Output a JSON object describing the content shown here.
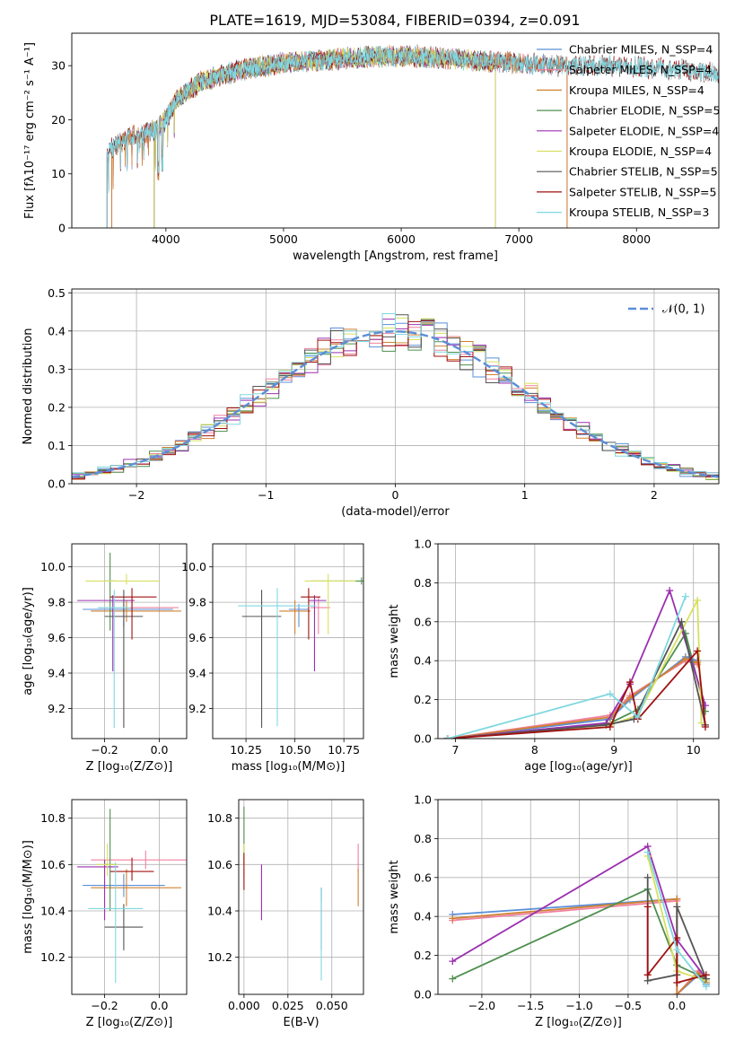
{
  "figure": {
    "suptitle": "PLATE=1619, MJD=53084, FIBERID=0394, z=0.091"
  },
  "colors": {
    "Chabrier MILES": "#5b8fd8",
    "Salpeter MILES": "#f080a0",
    "Kroupa MILES": "#d08030",
    "Chabrier ELODIE": "#4f8f4f",
    "Salpeter ELODIE": "#9b30b0",
    "Kroupa ELODIE": "#d8e060",
    "Chabrier STELIB": "#555555",
    "Salpeter STELIB": "#a01010",
    "Kroupa STELIB": "#80d8e0",
    "gaussian": "#5b8fd8",
    "grid": "#b0b0b0"
  },
  "chart_data": [
    {
      "id": "spectrum",
      "type": "line",
      "xlabel": "wavelength [Angstrom, rest frame]",
      "ylabel": "Flux [fλ10⁻¹⁷ erg cm⁻² s⁻¹ A⁻¹]",
      "xlim": [
        3200,
        8700
      ],
      "ylim": [
        0,
        36
      ],
      "xticks": [
        4000,
        5000,
        6000,
        7000,
        8000
      ],
      "yticks": [
        0,
        10,
        20,
        30
      ],
      "grid": false,
      "legend_position": "upper right",
      "continuum_shape": {
        "x": [
          3500,
          3700,
          3900,
          4000,
          4100,
          4300,
          4500,
          4700,
          5000,
          5300,
          5600,
          6000,
          6300,
          6600,
          7000,
          7400,
          7800,
          8200,
          8500,
          8700
        ],
        "y": [
          14,
          17,
          18,
          20,
          24,
          27,
          28.5,
          29.5,
          30.5,
          31,
          31.5,
          31.8,
          31.5,
          31,
          30.5,
          30,
          30,
          29.5,
          29,
          28.5
        ]
      },
      "series": [
        {
          "name": "Chabrier MILES",
          "label": "Chabrier MILES, N_SSP=4",
          "x_range": [
            3540,
            7410
          ]
        },
        {
          "name": "Salpeter MILES",
          "label": "Salpeter MILES, N_SSP=4",
          "x_range": [
            3540,
            7410
          ]
        },
        {
          "name": "Kroupa MILES",
          "label": "Kroupa MILES, N_SSP=4",
          "x_range": [
            3540,
            7410
          ]
        },
        {
          "name": "Chabrier ELODIE",
          "label": "Chabrier ELODIE, N_SSP=5",
          "x_range": [
            3900,
            6800
          ]
        },
        {
          "name": "Salpeter ELODIE",
          "label": "Salpeter ELODIE, N_SSP=4",
          "x_range": [
            3900,
            6800
          ]
        },
        {
          "name": "Kroupa ELODIE",
          "label": "Kroupa ELODIE, N_SSP=4",
          "x_range": [
            3900,
            6800
          ]
        },
        {
          "name": "Chabrier STELIB",
          "label": "Chabrier STELIB, N_SSP=5",
          "x_range": [
            3500,
            8700
          ]
        },
        {
          "name": "Salpeter STELIB",
          "label": "Salpeter STELIB, N_SSP=5",
          "x_range": [
            3500,
            8700
          ]
        },
        {
          "name": "Kroupa STELIB",
          "label": "Kroupa STELIB, N_SSP=3",
          "x_range": [
            3500,
            8700
          ]
        }
      ]
    },
    {
      "id": "residuals",
      "type": "line",
      "xlabel": "(data-model)/error",
      "ylabel": "Normed distribution",
      "xlim": [
        -2.5,
        2.5
      ],
      "ylim": [
        0,
        0.51
      ],
      "xticks": [
        -2,
        -1,
        0,
        1,
        2
      ],
      "yticks": [
        0.0,
        0.1,
        0.2,
        0.3,
        0.4,
        0.5
      ],
      "grid": true,
      "legend_position": "upper right",
      "gaussian": {
        "label": "𝒩(0, 1)",
        "mean": 0,
        "sigma": 1
      },
      "histogram_bin_width": 0.1,
      "series_names": [
        "Chabrier MILES",
        "Salpeter MILES",
        "Kroupa MILES",
        "Chabrier ELODIE",
        "Salpeter ELODIE",
        "Kroupa ELODIE",
        "Chabrier STELIB",
        "Salpeter STELIB",
        "Kroupa STELIB"
      ]
    },
    {
      "id": "age_vs_Z",
      "type": "scatter",
      "xlabel": "Z [log₁₀(Z/Z⊙)]",
      "ylabel": "age  [log₁₀(age/yr)]",
      "xlim": [
        -0.32,
        0.1
      ],
      "ylim": [
        9.03,
        10.13
      ],
      "xticks": [
        -0.2,
        0.0
      ],
      "yticks": [
        9.2,
        9.4,
        9.6,
        9.8,
        10.0
      ],
      "grid": true,
      "points": [
        {
          "series": "Chabrier MILES",
          "x": -0.13,
          "xerr": [
            0.15,
            0.18
          ],
          "y": 9.76,
          "yerr": [
            0.1,
            0.03
          ]
        },
        {
          "series": "Salpeter MILES",
          "x": -0.1,
          "xerr": [
            0.12,
            0.17
          ],
          "y": 9.77,
          "yerr": [
            0.05,
            0.06
          ]
        },
        {
          "series": "Kroupa MILES",
          "x": -0.12,
          "xerr": [
            0.13,
            0.2
          ],
          "y": 9.75,
          "yerr": [
            0.06,
            0.06
          ]
        },
        {
          "series": "Chabrier ELODIE",
          "x": -0.18,
          "xerr": [
            0.02,
            0.02
          ],
          "y": 9.92,
          "yerr": [
            0.28,
            0.16
          ]
        },
        {
          "series": "Salpeter ELODIE",
          "x": -0.17,
          "xerr": [
            0.13,
            0.08
          ],
          "y": 9.81,
          "yerr": [
            0.4,
            0.03
          ]
        },
        {
          "series": "Kroupa ELODIE",
          "x": -0.12,
          "xerr": [
            0.15,
            0.12
          ],
          "y": 9.92,
          "yerr": [
            0.02,
            0.04
          ]
        },
        {
          "series": "Chabrier STELIB",
          "x": -0.13,
          "xerr": [
            0.07,
            0.07
          ],
          "y": 9.72,
          "yerr": [
            0.63,
            0.15
          ]
        },
        {
          "series": "Salpeter STELIB",
          "x": -0.1,
          "xerr": [
            0.08,
            0.09
          ],
          "y": 9.83,
          "yerr": [
            0.24,
            0.05
          ]
        },
        {
          "series": "Kroupa STELIB",
          "x": -0.165,
          "xerr": [
            0.06,
            0.06
          ],
          "y": 9.77,
          "yerr": [
            0.68,
            0.1
          ]
        }
      ]
    },
    {
      "id": "age_vs_mass",
      "type": "scatter",
      "xlabel": "mass [log₁₀(M/M⊙)]",
      "ylabel": "",
      "xlim": [
        10.08,
        10.85
      ],
      "ylim": [
        9.03,
        10.13
      ],
      "xticks": [
        10.25,
        10.5,
        10.75
      ],
      "yticks": [
        9.2,
        9.4,
        9.6,
        9.8,
        10.0
      ],
      "grid": true,
      "points": [
        {
          "series": "Chabrier MILES",
          "x": 10.52,
          "xerr": [
            0.05,
            0.05
          ],
          "y": 9.76,
          "yerr": [
            0.1,
            0.03
          ]
        },
        {
          "series": "Salpeter MILES",
          "x": 10.62,
          "xerr": [
            0.04,
            0.06
          ],
          "y": 9.77,
          "yerr": [
            0.15,
            0.06
          ]
        },
        {
          "series": "Kroupa MILES",
          "x": 10.5,
          "xerr": [
            0.08,
            0.08
          ],
          "y": 9.75,
          "yerr": [
            0.13,
            0.06
          ]
        },
        {
          "series": "Chabrier ELODIE",
          "x": 10.84,
          "xerr": [
            0.26,
            0.08
          ],
          "y": 9.92,
          "yerr": [
            0.02,
            0.02
          ]
        },
        {
          "series": "Salpeter ELODIE",
          "x": 10.6,
          "xerr": [
            0.03,
            0.06
          ],
          "y": 9.81,
          "yerr": [
            0.4,
            0.03
          ]
        },
        {
          "series": "Kroupa ELODIE",
          "x": 10.67,
          "xerr": [
            0.12,
            0.14
          ],
          "y": 9.92,
          "yerr": [
            0.3,
            0.04
          ]
        },
        {
          "series": "Chabrier STELIB",
          "x": 10.33,
          "xerr": [
            0.1,
            0.1
          ],
          "y": 9.72,
          "yerr": [
            0.63,
            0.15
          ]
        },
        {
          "series": "Salpeter STELIB",
          "x": 10.57,
          "xerr": [
            0.04,
            0.06
          ],
          "y": 9.83,
          "yerr": [
            0.24,
            0.05
          ]
        },
        {
          "series": "Kroupa STELIB",
          "x": 10.41,
          "xerr": [
            0.2,
            0.2
          ],
          "y": 9.78,
          "yerr": [
            0.68,
            0.1
          ]
        }
      ]
    },
    {
      "id": "massweight_vs_age",
      "type": "line",
      "xlabel": "age  [log₁₀(age/yr)]",
      "ylabel": "mass weight",
      "xlim": [
        6.78,
        10.32
      ],
      "ylim": [
        0,
        1.0
      ],
      "xticks": [
        7,
        8,
        9,
        10
      ],
      "yticks": [
        0.0,
        0.2,
        0.4,
        0.6,
        0.8,
        1.0
      ],
      "grid": true,
      "series": [
        {
          "name": "Chabrier MILES",
          "x": [
            6.9,
            8.95,
            9.2,
            9.9,
            10.05
          ],
          "y": [
            0.0,
            0.1,
            0.2,
            0.42,
            0.4
          ]
        },
        {
          "name": "Salpeter MILES",
          "x": [
            6.9,
            8.95,
            9.2,
            9.9,
            10.05
          ],
          "y": [
            0.0,
            0.12,
            0.22,
            0.4,
            0.38
          ]
        },
        {
          "name": "Kroupa MILES",
          "x": [
            6.9,
            8.95,
            9.2,
            9.9,
            10.05
          ],
          "y": [
            0.0,
            0.11,
            0.21,
            0.41,
            0.39
          ]
        },
        {
          "name": "Chabrier ELODIE",
          "x": [
            6.9,
            8.95,
            9.3,
            9.9,
            10.15
          ],
          "y": [
            0.0,
            0.08,
            0.15,
            0.54,
            0.14
          ]
        },
        {
          "name": "Salpeter ELODIE",
          "x": [
            6.9,
            8.9,
            9.2,
            9.7,
            10.15
          ],
          "y": [
            0.0,
            0.08,
            0.28,
            0.76,
            0.17
          ]
        },
        {
          "name": "Kroupa ELODIE",
          "x": [
            6.9,
            8.95,
            9.3,
            10.05,
            10.1
          ],
          "y": [
            0.0,
            0.07,
            0.12,
            0.71,
            0.08
          ]
        },
        {
          "name": "Chabrier STELIB",
          "x": [
            6.9,
            8.9,
            9.25,
            9.85,
            10.15
          ],
          "y": [
            0.0,
            0.07,
            0.1,
            0.6,
            0.07
          ]
        },
        {
          "name": "Salpeter STELIB",
          "x": [
            6.9,
            8.95,
            9.2,
            9.3,
            10.05,
            10.15
          ],
          "y": [
            0.0,
            0.06,
            0.29,
            0.1,
            0.45,
            0.06
          ]
        },
        {
          "name": "Kroupa STELIB",
          "x": [
            6.9,
            8.95,
            9.3,
            9.9
          ],
          "y": [
            0.0,
            0.23,
            0.11,
            0.73
          ]
        }
      ]
    },
    {
      "id": "mass_vs_Z",
      "type": "scatter",
      "xlabel": "Z [log₁₀(Z/Z⊙)]",
      "ylabel": "mass [log₁₀(M/M⊙)]",
      "xlim": [
        -0.32,
        0.1
      ],
      "ylim": [
        10.04,
        10.88
      ],
      "xticks": [
        -0.2,
        0.0
      ],
      "yticks": [
        10.2,
        10.4,
        10.6,
        10.8
      ],
      "grid": true,
      "points": [
        {
          "series": "Chabrier MILES",
          "x": -0.13,
          "xerr": [
            0.15,
            0.15
          ],
          "y": 10.51,
          "yerr": [
            0.05,
            0.05
          ]
        },
        {
          "series": "Salpeter MILES",
          "x": -0.05,
          "xerr": [
            0.2,
            0.16
          ],
          "y": 10.62,
          "yerr": [
            0.04,
            0.04
          ]
        },
        {
          "series": "Kroupa MILES",
          "x": -0.12,
          "xerr": [
            0.13,
            0.2
          ],
          "y": 10.5,
          "yerr": [
            0.08,
            0.08
          ]
        },
        {
          "series": "Chabrier ELODIE",
          "x": -0.18,
          "xerr": [
            0.02,
            0.02
          ],
          "y": 10.6,
          "yerr": [
            0.2,
            0.24
          ]
        },
        {
          "series": "Salpeter ELODIE",
          "x": -0.2,
          "xerr": [
            0.1,
            0.05
          ],
          "y": 10.59,
          "yerr": [
            0.23,
            0.03
          ]
        },
        {
          "series": "Kroupa ELODIE",
          "x": -0.19,
          "xerr": [
            0.04,
            0.04
          ],
          "y": 10.6,
          "yerr": [
            0.05,
            0.09
          ]
        },
        {
          "series": "Chabrier STELIB",
          "x": -0.13,
          "xerr": [
            0.07,
            0.07
          ],
          "y": 10.33,
          "yerr": [
            0.1,
            0.1
          ]
        },
        {
          "series": "Salpeter STELIB",
          "x": -0.1,
          "xerr": [
            0.08,
            0.08
          ],
          "y": 10.57,
          "yerr": [
            0.04,
            0.06
          ]
        },
        {
          "series": "Kroupa STELIB",
          "x": -0.16,
          "xerr": [
            0.1,
            0.1
          ],
          "y": 10.41,
          "yerr": [
            0.32,
            0.2
          ]
        }
      ]
    },
    {
      "id": "mass_vs_EBV",
      "type": "scatter",
      "xlabel": "E(B-V)",
      "ylabel": "",
      "xlim": [
        -0.003,
        0.068
      ],
      "ylim": [
        10.04,
        10.88
      ],
      "xticks": [
        0.0,
        0.025,
        0.05
      ],
      "yticks": [
        10.2,
        10.4,
        10.6,
        10.8
      ],
      "grid": true,
      "points": [
        {
          "series": "Chabrier MILES",
          "x": 0.044,
          "y": 10.47,
          "yerr": [
            0.03,
            0.03
          ]
        },
        {
          "series": "Salpeter MILES",
          "x": 0.065,
          "y": 10.62,
          "yerr": [
            0.05,
            0.07
          ]
        },
        {
          "series": "Kroupa MILES",
          "x": 0.065,
          "y": 10.5,
          "yerr": [
            0.08,
            0.08
          ]
        },
        {
          "series": "Chabrier ELODIE",
          "x": 0.0,
          "y": 10.7,
          "yerr": [
            0.1,
            0.15
          ]
        },
        {
          "series": "Salpeter ELODIE",
          "x": 0.01,
          "y": 10.5,
          "yerr": [
            0.14,
            0.1
          ]
        },
        {
          "series": "Kroupa ELODIE",
          "x": 0.0,
          "y": 10.6,
          "yerr": [
            0.05,
            0.09
          ]
        },
        {
          "series": "Chabrier STELIB",
          "x": 0.044,
          "y": 10.35,
          "yerr": [
            0.12,
            0.15
          ]
        },
        {
          "series": "Salpeter STELIB",
          "x": 0.0,
          "y": 10.57,
          "yerr": [
            0.08,
            0.08
          ]
        },
        {
          "series": "Kroupa STELIB",
          "x": 0.044,
          "y": 10.3,
          "yerr": [
            0.2,
            0.2
          ]
        }
      ]
    },
    {
      "id": "massweight_vs_Z",
      "type": "line",
      "xlabel": "Z [log₁₀(Z/Z⊙)]",
      "ylabel": "mass weight",
      "xlim": [
        -2.45,
        0.43
      ],
      "ylim": [
        0,
        1.0
      ],
      "xticks": [
        -2.0,
        -1.5,
        -1.0,
        -0.5,
        0.0
      ],
      "yticks": [
        0.0,
        0.2,
        0.4,
        0.6,
        0.8,
        1.0
      ],
      "grid": true,
      "series": [
        {
          "name": "Chabrier MILES",
          "x": [
            -2.3,
            0.0,
            0.0,
            0.22,
            0.3
          ],
          "y": [
            0.41,
            0.49,
            0.0,
            0.1,
            0.05
          ]
        },
        {
          "name": "Salpeter MILES",
          "x": [
            -2.3,
            0.0,
            0.0,
            0.22,
            0.3
          ],
          "y": [
            0.38,
            0.48,
            0.0,
            0.12,
            0.06
          ]
        },
        {
          "name": "Kroupa MILES",
          "x": [
            -2.3,
            0.0,
            0.0,
            0.22,
            0.3
          ],
          "y": [
            0.39,
            0.49,
            0.0,
            0.11,
            0.06
          ]
        },
        {
          "name": "Chabrier ELODIE",
          "x": [
            -2.3,
            -0.3,
            0.0,
            0.3
          ],
          "y": [
            0.08,
            0.54,
            0.15,
            0.08
          ]
        },
        {
          "name": "Salpeter ELODIE",
          "x": [
            -2.3,
            -0.3,
            0.0,
            0.3
          ],
          "y": [
            0.17,
            0.76,
            0.28,
            0.08
          ]
        },
        {
          "name": "Kroupa ELODIE",
          "x": [
            -0.3,
            0.0,
            0.3
          ],
          "y": [
            0.71,
            0.12,
            0.07
          ]
        },
        {
          "name": "Chabrier STELIB",
          "x": [
            -0.3,
            -0.3,
            0.0,
            0.0,
            0.3
          ],
          "y": [
            0.6,
            0.07,
            0.1,
            0.45,
            0.08
          ]
        },
        {
          "name": "Salpeter STELIB",
          "x": [
            -0.3,
            -0.3,
            0.0,
            0.0,
            0.3
          ],
          "y": [
            0.45,
            0.1,
            0.29,
            0.06,
            0.1
          ]
        },
        {
          "name": "Kroupa STELIB",
          "x": [
            -0.3,
            0.0,
            0.3
          ],
          "y": [
            0.73,
            0.23,
            0.04
          ]
        }
      ]
    }
  ]
}
